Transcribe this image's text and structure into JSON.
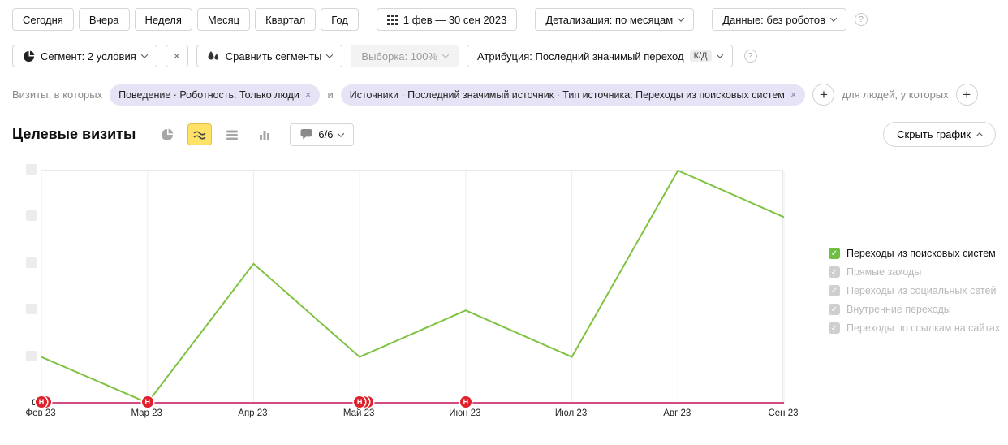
{
  "toolbar": {
    "periods": [
      "Сегодня",
      "Вчера",
      "Неделя",
      "Месяц",
      "Квартал",
      "Год"
    ],
    "date_range": "1 фев — 30 сен 2023",
    "detalization": "Детализация: по месяцам",
    "data_mode": "Данные: без роботов"
  },
  "segment_bar": {
    "segment": "Сегмент: 2 условия",
    "compare": "Сравнить сегменты",
    "sampling": "Выборка: 100%",
    "attribution": "Атрибуция: Последний значимый переход",
    "attribution_badge": "К/Д"
  },
  "filter_bar": {
    "visits_label": "Визиты, в которых",
    "joiner": "и",
    "people_label": "для людей, у которых",
    "chips": [
      {
        "text": "Поведение · Роботность: Только люди"
      },
      {
        "text": "Источники · Последний значимый источник · Тип источника: Переходы из поисковых систем"
      }
    ]
  },
  "chart_header": {
    "title": "Целевые визиты",
    "goals_count": "6/6",
    "hide_chart": "Скрыть график"
  },
  "chart_data": {
    "type": "line",
    "categories": [
      "Фев 23",
      "Мар 23",
      "Апр 23",
      "Май 23",
      "Июн 23",
      "Июл 23",
      "Авг 23",
      "Сен 23"
    ],
    "series": [
      {
        "name": "Переходы из поисковых систем",
        "color": "#7fc241",
        "values": [
          1,
          0,
          3,
          1,
          2,
          1,
          5,
          4
        ]
      },
      {
        "name": "",
        "color": "#d44a82",
        "values": [
          0,
          0,
          0,
          0,
          0,
          0,
          0,
          0
        ]
      }
    ],
    "ylim": [
      0,
      5
    ],
    "y_zero_label": "0",
    "grid": "vertical",
    "legend_position": "right"
  },
  "annotations": [
    {
      "index": 0,
      "label": "Н",
      "stack": 2
    },
    {
      "index": 1,
      "label": "Н",
      "stack": 1
    },
    {
      "index": 3,
      "label": "Н",
      "stack": 3
    },
    {
      "index": 4,
      "label": "Н",
      "stack": 1
    }
  ],
  "legend": {
    "items": [
      {
        "label": "Переходы из поисковых систем",
        "active": true
      },
      {
        "label": "Прямые заходы",
        "active": false
      },
      {
        "label": "Переходы из социальных сетей",
        "active": false
      },
      {
        "label": "Внутренние переходы",
        "active": false
      },
      {
        "label": "Переходы по ссылкам на сайтах",
        "active": false
      }
    ]
  },
  "colors": {
    "accent_yellow": "#ffe266",
    "line_green": "#7fc241",
    "line_pink": "#d44a82",
    "marker_red": "#e0212c",
    "chip_bg": "#e6e3f6",
    "legend_active_green": "#6fbf44",
    "grid_gray": "#ededed"
  }
}
